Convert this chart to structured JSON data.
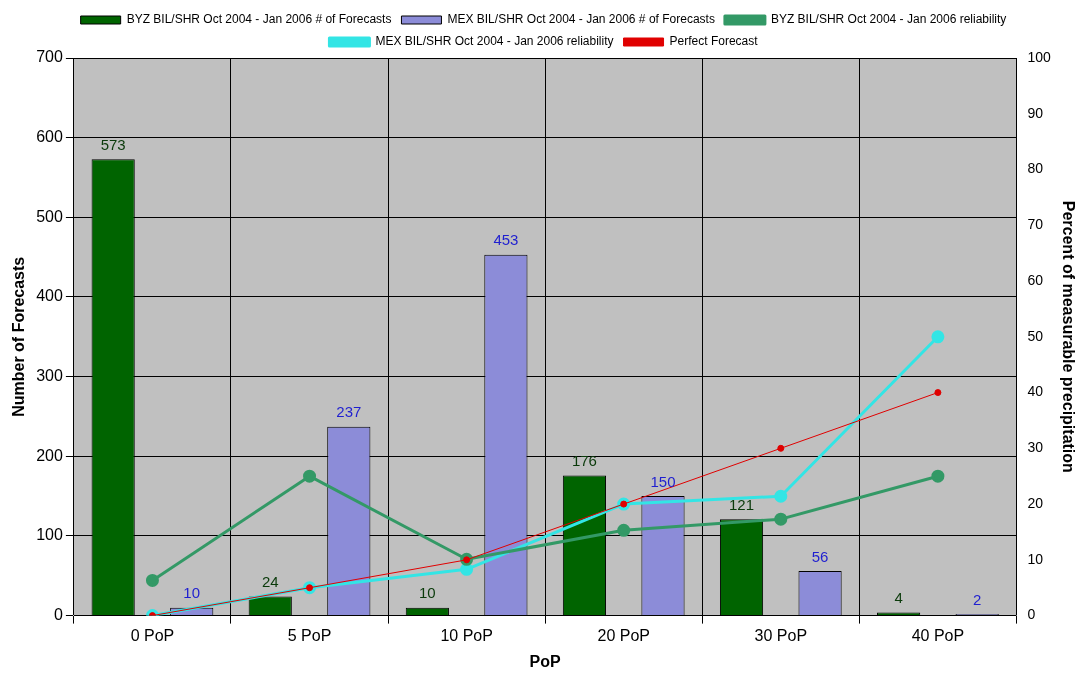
{
  "chart_data": {
    "type": "bar",
    "xlabel": "PoP",
    "ylabel": "Number of Forecasts",
    "y2label": "Percent of measurable precipitation",
    "categories": [
      "0 PoP",
      "5 PoP",
      "10 PoP",
      "20 PoP",
      "30 PoP",
      "40 PoP"
    ],
    "series": [
      {
        "name": "BYZ BIL/SHR Oct 2004 - Jan 2006 # of Forecasts",
        "color": "#006400",
        "values": [
          573,
          24,
          10,
          176,
          121,
          4
        ],
        "value_labels": [
          "573",
          "24",
          "10",
          "176",
          "121",
          "4"
        ]
      },
      {
        "name": "MEX BIL/SHR Oct 2004 - Jan 2006 # of Forecasts",
        "color": "#8c8cd8",
        "values": [
          10,
          237,
          453,
          150,
          56,
          2
        ],
        "value_labels": [
          "10",
          "237",
          "453",
          "150",
          "56",
          "2"
        ]
      },
      {
        "name": "BYZ BIL/SHR Oct 2004 - Jan 2006 reliability",
        "type": "line",
        "axis": "y2",
        "color": "#339966",
        "values": [
          6.3,
          25,
          10.1,
          15.3,
          17.3,
          25
        ]
      },
      {
        "name": "MEX BIL/SHR Oct 2004 - Jan 2006 reliability",
        "type": "line",
        "axis": "y2",
        "color": "#33e5e5",
        "values": [
          0,
          5,
          8.3,
          20,
          21.4,
          50
        ]
      },
      {
        "name": "Perfect Forecast",
        "type": "line",
        "axis": "y2",
        "color": "#e00000",
        "values": [
          0,
          5,
          10,
          20,
          30,
          40
        ]
      }
    ],
    "ylim": [
      0,
      700
    ],
    "yticks": [
      0,
      100,
      200,
      300,
      400,
      500,
      600,
      700
    ],
    "y2lim": [
      0,
      100
    ],
    "y2ticks": [
      0,
      10,
      20,
      30,
      40,
      50,
      60,
      70,
      80,
      90,
      100
    ],
    "grid": true,
    "legend": "top",
    "marker": "circle"
  }
}
